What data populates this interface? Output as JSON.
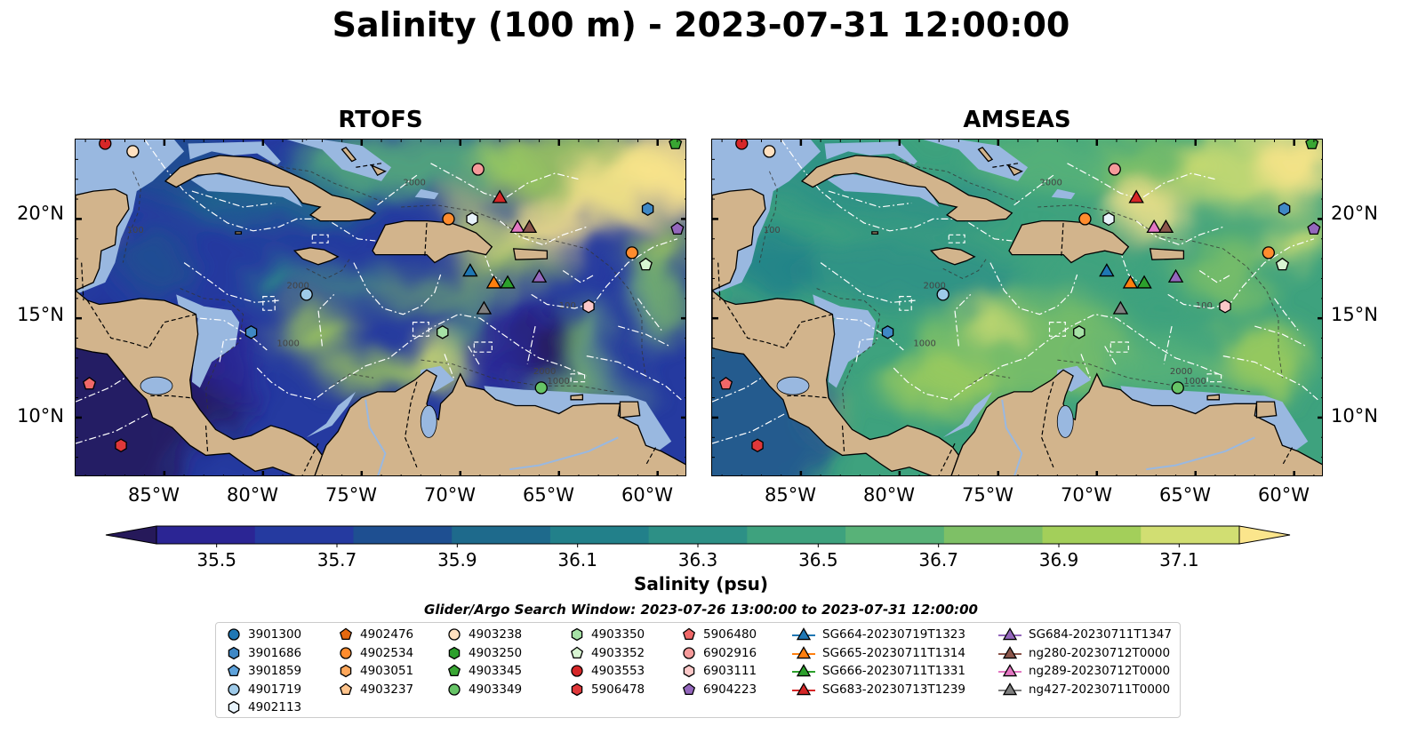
{
  "title": "Salinity (100 m) - 2023-07-31 12:00:00",
  "panels": [
    {
      "id": "rtofs",
      "title": "RTOFS"
    },
    {
      "id": "amseas",
      "title": "AMSEAS"
    }
  ],
  "lat_ticks": [
    "20°N",
    "15°N",
    "10°N"
  ],
  "lon_ticks": [
    "85°W",
    "80°W",
    "75°W",
    "70°W",
    "65°W",
    "60°W"
  ],
  "extent": {
    "lon_min": -89.5,
    "lon_max": -58.5,
    "lat_min": 7,
    "lat_max": 24
  },
  "colorbar": {
    "label": "Salinity (psu)",
    "min": 35.4,
    "max": 37.2,
    "extend": "both",
    "tick_labels": [
      "35.5",
      "35.7",
      "35.9",
      "36.1",
      "36.3",
      "36.5",
      "36.7",
      "36.9",
      "37.1"
    ],
    "colors": [
      "#26195a",
      "#2b2594",
      "#253aa0",
      "#1e4f91",
      "#1e6a8c",
      "#22808a",
      "#2d9086",
      "#3ea27e",
      "#58b278",
      "#7ec066",
      "#a3cf5a",
      "#d1de72",
      "#fbe58c"
    ]
  },
  "colors": {
    "land": "#d2b48c",
    "shallow": "#99b8e0",
    "border": "#000000",
    "eez": "#ffffff"
  },
  "search_window": "Glider/Argo Search Window: 2023-07-26 13:00:00 to 2023-07-31 12:00:00",
  "legend": [
    {
      "label": "3901300",
      "marker": "circle",
      "color": "#1f77b4"
    },
    {
      "label": "3901686",
      "marker": "hexagon",
      "color": "#3f88c5"
    },
    {
      "label": "3901859",
      "marker": "pentagon",
      "color": "#5da2db"
    },
    {
      "label": "4901719",
      "marker": "circle",
      "color": "#9ecae9"
    },
    {
      "label": "4902113",
      "marker": "hexagon",
      "color": "#e8f3fb"
    },
    {
      "label": "4902476",
      "marker": "pentagon",
      "color": "#e6690f"
    },
    {
      "label": "4902534",
      "marker": "circle",
      "color": "#ff8c2e"
    },
    {
      "label": "4903051",
      "marker": "hexagon",
      "color": "#ffa75a"
    },
    {
      "label": "4903237",
      "marker": "pentagon",
      "color": "#ffc48c"
    },
    {
      "label": "4903238",
      "marker": "circle",
      "color": "#ffe0bf"
    },
    {
      "label": "4903250",
      "marker": "hexagon",
      "color": "#2ca02c"
    },
    {
      "label": "4903345",
      "marker": "pentagon",
      "color": "#39a633"
    },
    {
      "label": "4903349",
      "marker": "circle",
      "color": "#66c466"
    },
    {
      "label": "4903350",
      "marker": "hexagon",
      "color": "#a6e2a6"
    },
    {
      "label": "4903352",
      "marker": "pentagon",
      "color": "#d8f5d2"
    },
    {
      "label": "4903553",
      "marker": "circle",
      "color": "#d62728"
    },
    {
      "label": "5906478",
      "marker": "hexagon",
      "color": "#e0383a"
    },
    {
      "label": "5906480",
      "marker": "pentagon",
      "color": "#f06868"
    },
    {
      "label": "6902916",
      "marker": "circle",
      "color": "#f59a9a"
    },
    {
      "label": "6903111",
      "marker": "hexagon",
      "color": "#fbc8c8"
    },
    {
      "label": "6904223",
      "marker": "pentagon",
      "color": "#9467bd"
    },
    {
      "label": "SG664-20230719T1323",
      "marker": "triangle",
      "color": "#1f77b4"
    },
    {
      "label": "SG665-20230711T1314",
      "marker": "triangle",
      "color": "#ff7f0e"
    },
    {
      "label": "SG666-20230711T1331",
      "marker": "triangle",
      "color": "#2ca02c"
    },
    {
      "label": "SG683-20230713T1239",
      "marker": "triangle",
      "color": "#d62728"
    },
    {
      "label": "SG684-20230711T1347",
      "marker": "triangle",
      "color": "#9467bd"
    },
    {
      "label": "ng280-20230712T0000",
      "marker": "triangle",
      "color": "#8c564b"
    },
    {
      "label": "ng289-20230712T0000",
      "marker": "triangle",
      "color": "#e377c2"
    },
    {
      "label": "ng427-20230711T0000",
      "marker": "triangle",
      "color": "#7f7f7f"
    }
  ],
  "map_markers": [
    {
      "lon": -88.0,
      "lat": 23.8,
      "label": "4903553"
    },
    {
      "lon": -86.6,
      "lat": 23.4,
      "label": "4903238"
    },
    {
      "lon": -69.1,
      "lat": 22.5,
      "label": "6902916"
    },
    {
      "lon": -59.1,
      "lat": 23.8,
      "label": "4903345"
    },
    {
      "lon": -68.0,
      "lat": 21.1,
      "label": "SG683-20230713T1239"
    },
    {
      "lon": -60.5,
      "lat": 20.5,
      "label": "3901686"
    },
    {
      "lon": -59.0,
      "lat": 19.5,
      "label": "6904223"
    },
    {
      "lon": -70.6,
      "lat": 20.0,
      "label": "4902534"
    },
    {
      "lon": -69.4,
      "lat": 20.0,
      "label": "4902113"
    },
    {
      "lon": -67.1,
      "lat": 19.6,
      "label": "ng289-20230712T0000"
    },
    {
      "lon": -66.5,
      "lat": 19.6,
      "label": "ng280-20230712T0000"
    },
    {
      "lon": -61.3,
      "lat": 18.3,
      "label": "4902534"
    },
    {
      "lon": -60.6,
      "lat": 17.7,
      "label": "4903352"
    },
    {
      "lon": -69.5,
      "lat": 17.4,
      "label": "SG664-20230719T1323"
    },
    {
      "lon": -68.3,
      "lat": 16.8,
      "label": "SG665-20230711T1314"
    },
    {
      "lon": -67.6,
      "lat": 16.8,
      "label": "SG666-20230711T1331"
    },
    {
      "lon": -66.0,
      "lat": 17.1,
      "label": "SG684-20230711T1347"
    },
    {
      "lon": -77.8,
      "lat": 16.2,
      "label": "4901719"
    },
    {
      "lon": -63.5,
      "lat": 15.6,
      "label": "6903111"
    },
    {
      "lon": -68.8,
      "lat": 15.5,
      "label": "ng427-20230711T0000"
    },
    {
      "lon": -80.6,
      "lat": 14.3,
      "label": "3901686"
    },
    {
      "lon": -70.9,
      "lat": 14.3,
      "label": "4903350"
    },
    {
      "lon": -65.9,
      "lat": 11.5,
      "label": "4903349"
    },
    {
      "lon": -88.8,
      "lat": 11.7,
      "label": "5906480"
    },
    {
      "lon": -87.2,
      "lat": 8.6,
      "label": "5906478"
    }
  ]
}
